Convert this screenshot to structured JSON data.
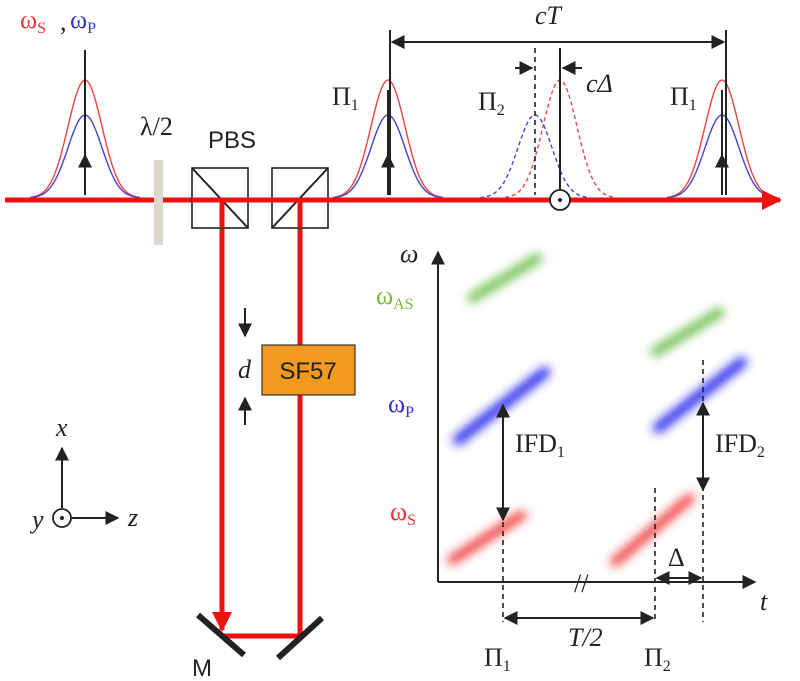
{
  "pulse_labels": {
    "omega_s": {
      "symbol": "ω",
      "sub": "S"
    },
    "separator": ",",
    "omega_p": {
      "symbol": "ω",
      "sub": "P"
    }
  },
  "optics": {
    "waveplate": "λ/2",
    "splitter": "PBS",
    "delay_plate": "SF57",
    "thickness": "d",
    "mirror": "M"
  },
  "pulses": {
    "period": "cT",
    "first": {
      "symbol": "Π",
      "sub": "1"
    },
    "second": {
      "symbol": "Π",
      "sub": "2"
    },
    "third": {
      "symbol": "Π",
      "sub": "1"
    },
    "offset": "cΔ"
  },
  "axes_triad": {
    "x": "x",
    "y": "y",
    "z": "z"
  },
  "spectrogram": {
    "y_axis": "ω",
    "omega_as": {
      "symbol": "ω",
      "sub": "AS"
    },
    "omega_p": {
      "symbol": "ω",
      "sub": "P"
    },
    "omega_s": {
      "symbol": "ω",
      "sub": "S"
    },
    "ifd_1": {
      "symbol": "IFD",
      "sub": "1"
    },
    "ifd_2": {
      "symbol": "IFD",
      "sub": "2"
    },
    "x_axis": "t",
    "break": "//",
    "delay": "Δ",
    "half_period": "T/2",
    "pulse_1": {
      "symbol": "Π",
      "sub": "1"
    },
    "pulse_2": {
      "symbol": "Π",
      "sub": "2"
    }
  }
}
